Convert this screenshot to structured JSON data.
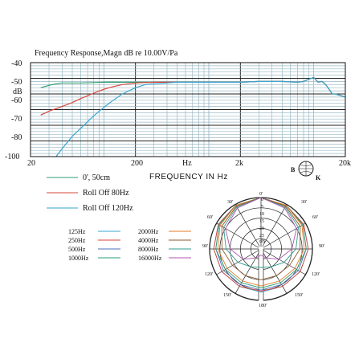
{
  "chart_data": [
    {
      "type": "line",
      "title": "Frequency  Response,Magn  dB re 10.00V/Pa",
      "ylabel": "dB",
      "xlabel": "FREQUENCY  IN  Hz",
      "xscale": "log",
      "xlim": [
        20,
        20000
      ],
      "ylim": [
        -100,
        -40
      ],
      "grid": true,
      "x_tick_labels": [
        "20",
        "200",
        "Hz",
        "2k",
        "20k"
      ],
      "y_tick_labels": [
        "-40",
        "-50",
        "-60",
        "-70",
        "-80",
        "-100"
      ],
      "legend_position": "bottom-left",
      "series": [
        {
          "name": "0', 50cm",
          "color": "#2e9e72",
          "x": [
            25,
            30,
            35,
            40,
            50,
            60,
            80,
            100,
            150,
            200,
            300,
            500,
            1000,
            2000,
            3000,
            5000,
            7000,
            8000,
            9000,
            10000,
            11000,
            12000,
            13000,
            14000,
            15000,
            16000,
            18000,
            20000
          ],
          "y": [
            -56,
            -54.5,
            -53.5,
            -53,
            -53,
            -53,
            -52.7,
            -52.5,
            -52.5,
            -52.5,
            -52.5,
            -52.5,
            -52.5,
            -52.5,
            -52,
            -52,
            -52.5,
            -52,
            -50.5,
            -49.5,
            -52.5,
            -52,
            -54,
            -57,
            -60,
            -60,
            -61,
            -62
          ]
        },
        {
          "name": "Roll Off  80Hz",
          "color": "#d8453b",
          "x": [
            25,
            30,
            40,
            50,
            60,
            80,
            100,
            120,
            150,
            200,
            250,
            300,
            500,
            1000,
            2000,
            3000,
            5000,
            7000,
            8000,
            9000,
            10000,
            11000,
            12000,
            13000,
            14000,
            15000,
            16000,
            18000,
            20000
          ],
          "y": [
            -73.5,
            -71,
            -68,
            -65.5,
            -63,
            -59.5,
            -57,
            -55.5,
            -54,
            -53,
            -52.7,
            -52.5,
            -52.5,
            -52.5,
            -52.5,
            -52,
            -52,
            -52.5,
            -52,
            -50.5,
            -49.5,
            -52.5,
            -52,
            -54,
            -57,
            -60,
            -60,
            -61,
            -62
          ]
        },
        {
          "name": "Roll Off  120Hz",
          "color": "#39a6cf",
          "x": [
            35,
            40,
            50,
            60,
            80,
            100,
            120,
            150,
            200,
            250,
            300,
            400,
            500,
            1000,
            2000,
            3000,
            5000,
            7000,
            8000,
            9000,
            10000,
            11000,
            12000,
            13000,
            14000,
            15000,
            16000,
            18000,
            20000
          ],
          "y": [
            -100,
            -95,
            -87,
            -82,
            -74,
            -68.5,
            -64.5,
            -60,
            -56,
            -54,
            -53.5,
            -53,
            -52.5,
            -52.5,
            -52.5,
            -52,
            -52,
            -52.5,
            -52,
            -50.5,
            -49.5,
            -52.5,
            -52,
            -54,
            -57,
            -60,
            -60,
            -61,
            -62
          ]
        }
      ]
    },
    {
      "type": "polar",
      "angle_labels": [
        "0'",
        "30'",
        "60'",
        "90'",
        "120'",
        "150'",
        "180'",
        "150'",
        "120'",
        "90'",
        "60'",
        "30'"
      ],
      "radial_labels": [
        "0",
        "5",
        "10",
        "15",
        "20",
        "25",
        "dB"
      ],
      "radial_max_db": 25,
      "series": [
        {
          "name": "125Hz",
          "color": "#39a6cf",
          "angles": [
            0,
            30,
            60,
            90,
            120,
            150,
            180
          ],
          "attenuation_db": [
            0,
            0.5,
            1,
            2,
            3,
            4,
            4
          ]
        },
        {
          "name": "250Hz",
          "color": "#d8453b",
          "angles": [
            0,
            30,
            60,
            90,
            120,
            150,
            180
          ],
          "attenuation_db": [
            0,
            0.5,
            1,
            2,
            3,
            4,
            4.5
          ]
        },
        {
          "name": "500Hz",
          "color": "#4a6fb8",
          "angles": [
            0,
            30,
            60,
            90,
            120,
            150,
            180
          ],
          "attenuation_db": [
            0,
            0.5,
            1.5,
            3,
            4,
            5,
            5
          ]
        },
        {
          "name": "1000Hz",
          "color": "#2e9e72",
          "angles": [
            0,
            30,
            60,
            90,
            120,
            150,
            180
          ],
          "attenuation_db": [
            0,
            0.5,
            1.5,
            3,
            5,
            6,
            6
          ]
        },
        {
          "name": "2000Hz",
          "color": "#e07b2a",
          "angles": [
            0,
            30,
            60,
            90,
            120,
            150,
            180
          ],
          "attenuation_db": [
            0,
            0.5,
            2,
            4,
            6,
            7,
            7
          ]
        },
        {
          "name": "4000Hz",
          "color": "#8b5a2b",
          "angles": [
            0,
            30,
            60,
            90,
            120,
            150,
            180
          ],
          "attenuation_db": [
            0,
            1,
            3,
            6,
            9,
            10,
            10
          ]
        },
        {
          "name": "8000Hz",
          "color": "#2f9e8f",
          "angles": [
            0,
            30,
            60,
            90,
            120,
            150,
            180
          ],
          "attenuation_db": [
            0,
            1.5,
            4,
            8,
            12,
            15,
            16
          ]
        },
        {
          "name": "16000Hz",
          "color": "#b055b0",
          "angles": [
            0,
            30,
            60,
            90,
            120,
            150,
            180
          ],
          "attenuation_db": [
            0,
            2,
            5,
            10,
            15,
            20,
            22
          ]
        }
      ]
    }
  ],
  "logo": {
    "top_letter": "B",
    "right_letter": "K"
  }
}
